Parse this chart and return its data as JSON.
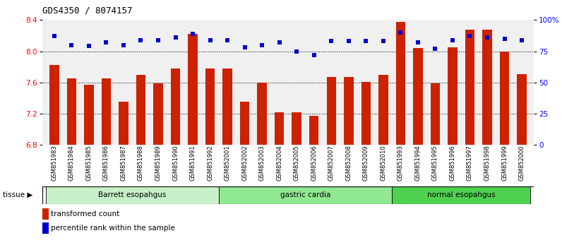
{
  "title": "GDS4350 / 8074157",
  "samples": [
    "GSM851983",
    "GSM851984",
    "GSM851985",
    "GSM851986",
    "GSM851987",
    "GSM851988",
    "GSM851989",
    "GSM851990",
    "GSM851991",
    "GSM851992",
    "GSM852001",
    "GSM852002",
    "GSM852003",
    "GSM852004",
    "GSM852005",
    "GSM852006",
    "GSM852007",
    "GSM852008",
    "GSM852009",
    "GSM852010",
    "GSM851993",
    "GSM851994",
    "GSM851995",
    "GSM851996",
    "GSM851997",
    "GSM851998",
    "GSM851999",
    "GSM852000"
  ],
  "bar_values": [
    7.82,
    7.65,
    7.57,
    7.65,
    7.35,
    7.7,
    7.59,
    7.78,
    8.22,
    7.78,
    7.78,
    7.35,
    7.6,
    7.22,
    7.22,
    7.17,
    7.67,
    7.67,
    7.61,
    7.7,
    8.38,
    8.04,
    7.59,
    8.05,
    8.28,
    8.28,
    8.0,
    7.71
  ],
  "percentile_values": [
    87,
    80,
    79,
    82,
    80,
    84,
    84,
    86,
    89,
    84,
    84,
    78,
    80,
    82,
    75,
    72,
    83,
    83,
    83,
    83,
    90,
    82,
    77,
    84,
    87,
    86,
    85,
    84
  ],
  "groups": [
    {
      "label": "Barrett esopahgus",
      "start": 0,
      "end": 10,
      "color": "#c8f0c8"
    },
    {
      "label": "gastric cardia",
      "start": 10,
      "end": 20,
      "color": "#90e890"
    },
    {
      "label": "normal esopahgus",
      "start": 20,
      "end": 28,
      "color": "#50d050"
    }
  ],
  "bar_color": "#cc2200",
  "percentile_color": "#0000cc",
  "ylim_left": [
    6.8,
    8.4
  ],
  "ylim_right": [
    0,
    100
  ],
  "yticks_left": [
    6.8,
    7.2,
    7.6,
    8.0,
    8.4
  ],
  "yticks_right": [
    0,
    25,
    50,
    75,
    100
  ],
  "ytick_labels_right": [
    "0",
    "25",
    "50",
    "75",
    "100%"
  ],
  "grid_values": [
    8.0,
    7.6,
    7.2
  ],
  "legend_items": [
    {
      "label": "transformed count",
      "color": "#cc2200"
    },
    {
      "label": "percentile rank within the sample",
      "color": "#0000cc"
    }
  ],
  "tissue_label": "tissue",
  "background_color": "#ffffff"
}
